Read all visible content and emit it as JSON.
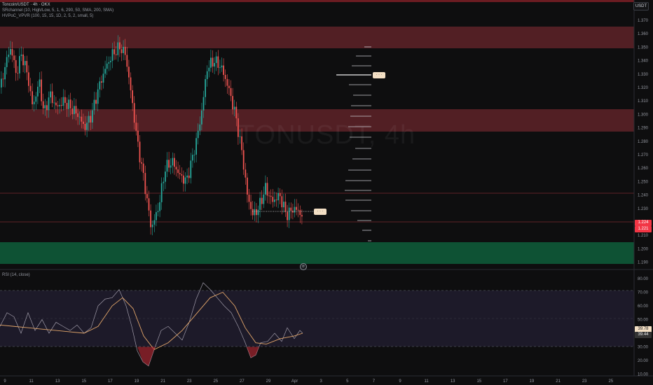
{
  "header": {
    "symbol_line": "Toncoin/USDT · 4h · OKX",
    "indicator1": "SRchannel (10, High/Low, 5, 1, 6, 290, 50, SMA, 200, SMA)",
    "indicator2": "HVPoC_VPVR (100, 15, 15, 1D, 2, 5, 2, small, 5)",
    "currency": "USDT"
  },
  "watermark": "TONUSDT, 4h",
  "rsi_legend": "RSI (14, close)",
  "price_axis": [
    "1.370",
    "1.360",
    "1.350",
    "1.340",
    "1.330",
    "1.320",
    "1.310",
    "1.300",
    "1.290",
    "1.280",
    "1.270",
    "1.260",
    "1.250",
    "1.240",
    "1.230",
    "1.220",
    "1.210",
    "1.200",
    "1.190"
  ],
  "rsi_axis": [
    "80.00",
    "70.00",
    "60.00",
    "50.00",
    "40.00",
    "30.00",
    "20.00",
    "10.00"
  ],
  "time_axis": [
    "9",
    "11",
    "13",
    "15",
    "17",
    "19",
    "21",
    "23",
    "25",
    "27",
    "29",
    "Apr",
    "3",
    "5",
    "7",
    "9",
    "11",
    "13",
    "15",
    "17",
    "19",
    "21",
    "23",
    "25"
  ],
  "price_tags": {
    "last_price": "1.224",
    "second": "1.221"
  },
  "rsi_tags": {
    "rsi": "39.78",
    "ma": "39.44"
  },
  "vp_labels": [
    "· · ·",
    "· · ·"
  ],
  "goto_icon": "⟳",
  "colors": {
    "up": "#26a69a",
    "down": "#ef5350",
    "resistance": "#6b2a30",
    "support": "#0f5a3c",
    "rsi_band": "#241f33"
  }
}
